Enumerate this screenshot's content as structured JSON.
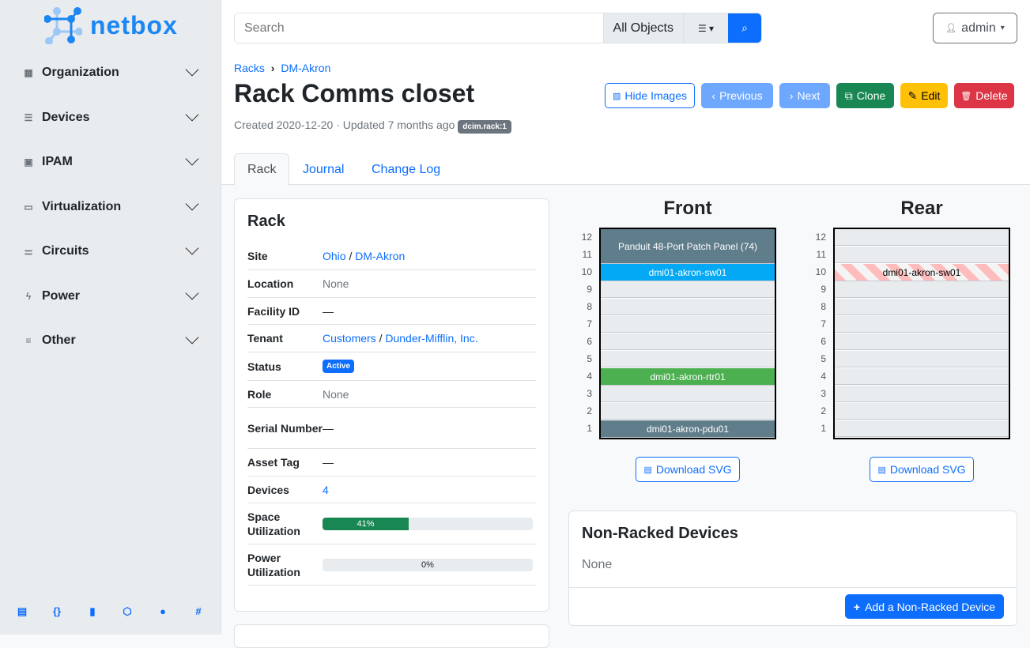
{
  "brand": {
    "name": "netbox",
    "color": "#1c86f2"
  },
  "sidebar": {
    "items": [
      {
        "label": "Organization",
        "icon": "building-icon"
      },
      {
        "label": "Devices",
        "icon": "server-icon"
      },
      {
        "label": "IPAM",
        "icon": "ip-icon"
      },
      {
        "label": "Virtualization",
        "icon": "monitor-icon"
      },
      {
        "label": "Circuits",
        "icon": "circuit-icon"
      },
      {
        "label": "Power",
        "icon": "lightning-icon"
      },
      {
        "label": "Other",
        "icon": "lines-icon"
      }
    ],
    "footer_icons": [
      "docs-icon",
      "api-icon",
      "book-icon",
      "graphql-icon",
      "github-icon",
      "slack-icon"
    ]
  },
  "search": {
    "placeholder": "Search",
    "scope": "All Objects"
  },
  "user": {
    "name": "admin"
  },
  "breadcrumb": [
    "Racks",
    "DM-Akron"
  ],
  "page": {
    "title": "Rack Comms closet",
    "meta": "Created 2020-12-20 · Updated 7 months ago",
    "tag": "dcim.rack:1"
  },
  "buttons": {
    "hide_images": "Hide Images",
    "previous": "Previous",
    "next": "Next",
    "clone": "Clone",
    "edit": "Edit",
    "delete": "Delete"
  },
  "tabs": [
    "Rack",
    "Journal",
    "Change Log"
  ],
  "rack_card": {
    "title": "Rack",
    "site_label": "Site",
    "site": "Ohio",
    "site2": "DM-Akron",
    "location_label": "Location",
    "location": "None",
    "facility_label": "Facility ID",
    "facility": "—",
    "tenant_label": "Tenant",
    "tenant": "Customers",
    "tenant2": "Dunder-Mifflin, Inc.",
    "status_label": "Status",
    "status": "Active",
    "role_label": "Role",
    "role": "None",
    "serial_label": "Serial Number",
    "serial": "—",
    "asset_label": "Asset Tag",
    "asset": "—",
    "devices_label": "Devices",
    "devices": "4",
    "space_label": "Space Utilization",
    "space": 41,
    "space_text": "41%",
    "power_label": "Power Utilization",
    "power": 0,
    "power_text": "0%"
  },
  "elevation": {
    "front_title": "Front",
    "rear_title": "Rear",
    "units": 12,
    "front": [
      {
        "name": "Panduit 48-Port Patch Panel (74)",
        "pos": 11,
        "height": 2,
        "color": "#607d8b"
      },
      {
        "name": "dmi01-akron-sw01",
        "pos": 10,
        "height": 1,
        "color": "#03a9f4"
      },
      {
        "name": "dmi01-akron-rtr01",
        "pos": 4,
        "height": 1,
        "color": "#4caf50"
      },
      {
        "name": "dmi01-akron-pdu01",
        "pos": 1,
        "height": 1,
        "color": "#607d8b"
      }
    ],
    "rear": [
      {
        "name": "dmi01-akron-sw01",
        "pos": 10,
        "height": 1,
        "color": "striped"
      }
    ],
    "download": "Download SVG"
  },
  "nonracked": {
    "title": "Non-Racked Devices",
    "value": "None",
    "add": "Add a Non-Racked Device"
  }
}
